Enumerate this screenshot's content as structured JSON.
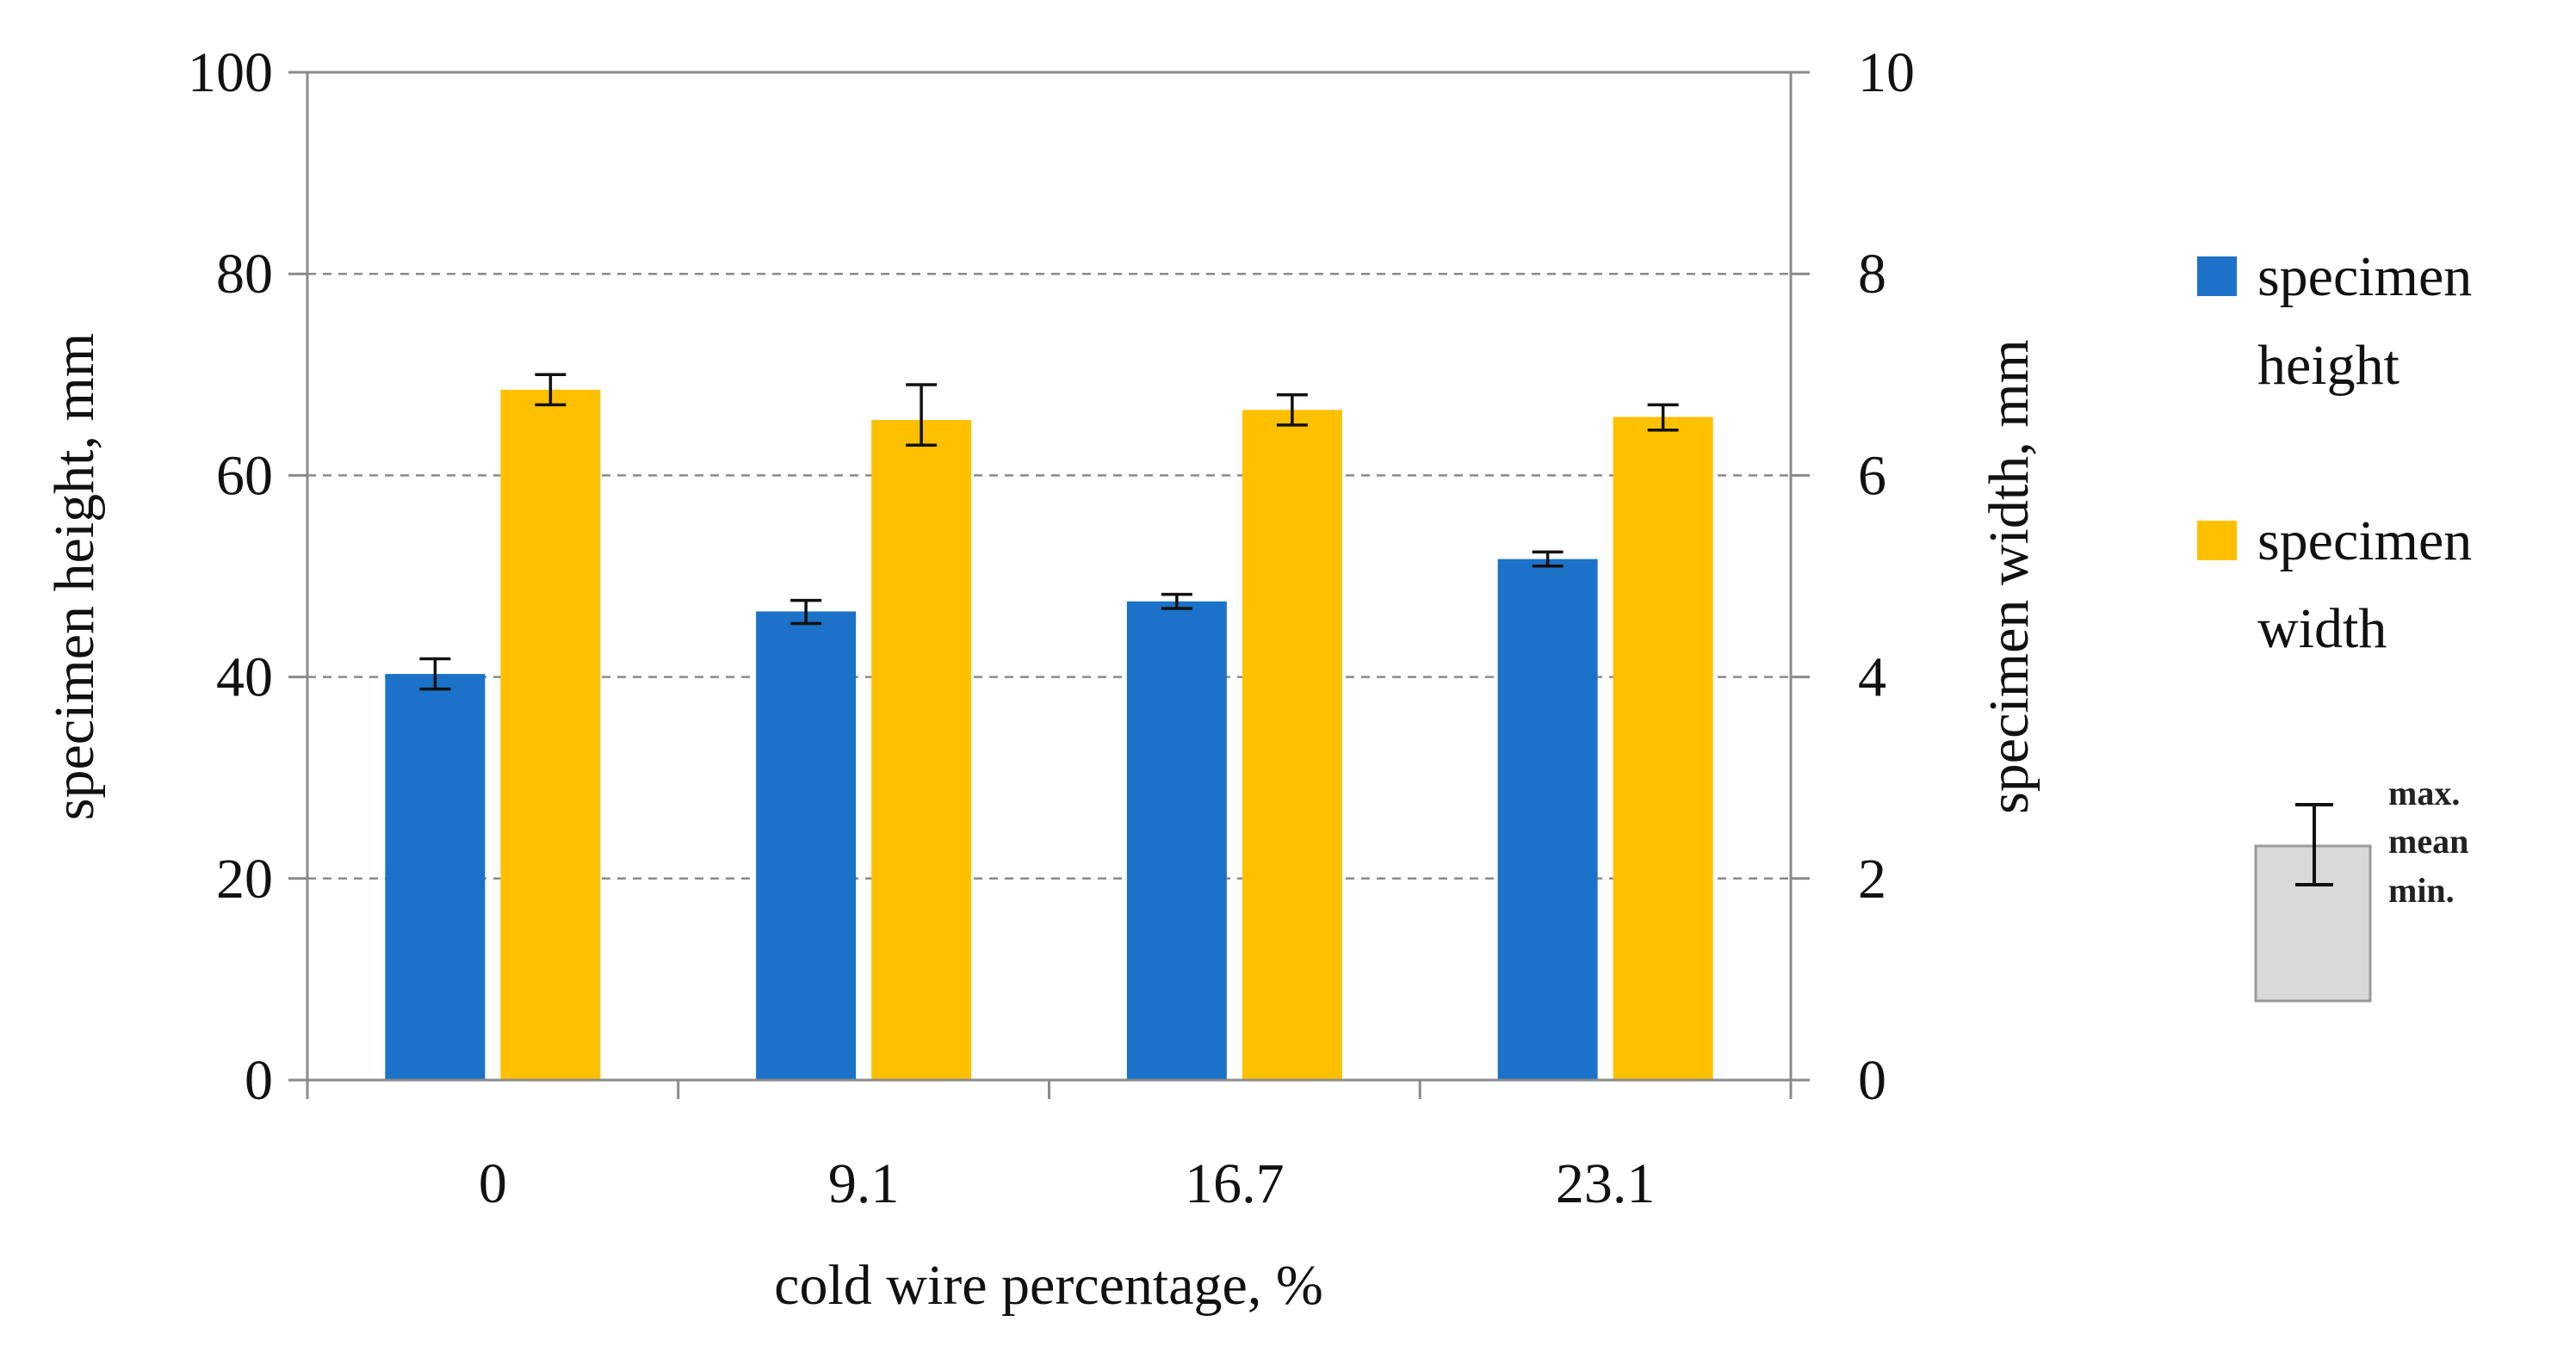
{
  "chart_data": {
    "type": "bar",
    "title": "",
    "xlabel": "cold wire percentage, %",
    "ylabel": "specimen height, mm",
    "y2label": "specimen width, mm",
    "categories": [
      "0",
      "9.1",
      "16.7",
      "23.1"
    ],
    "ylim": [
      0,
      100
    ],
    "y2lim": [
      0,
      10
    ],
    "yticks": [
      "0",
      "20",
      "40",
      "60",
      "80",
      "100"
    ],
    "y2ticks": [
      "0",
      "2",
      "4",
      "6",
      "8",
      "10"
    ],
    "grid": "horizontal dashed",
    "legend_position": "right",
    "series": [
      {
        "name": "specimen height",
        "axis": "left",
        "color": "#1B72C8",
        "values": [
          40.3,
          46.5,
          47.5,
          51.7
        ],
        "min": [
          38.8,
          45.3,
          46.8,
          51.0
        ],
        "max": [
          41.8,
          47.6,
          48.2,
          52.4
        ]
      },
      {
        "name": "specimen width",
        "axis": "right",
        "color": "#FFC000",
        "values": [
          6.85,
          6.55,
          6.65,
          6.58
        ],
        "min": [
          6.7,
          6.3,
          6.5,
          6.45
        ],
        "max": [
          7.0,
          6.9,
          6.8,
          6.7
        ]
      }
    ],
    "legend": {
      "height_line1": "specimen",
      "height_line2": "height",
      "width_line1": "specimen",
      "width_line2": "width"
    },
    "errorbar_key": {
      "max_label": "max.",
      "mean_label": "mean",
      "min_label": "min."
    }
  }
}
